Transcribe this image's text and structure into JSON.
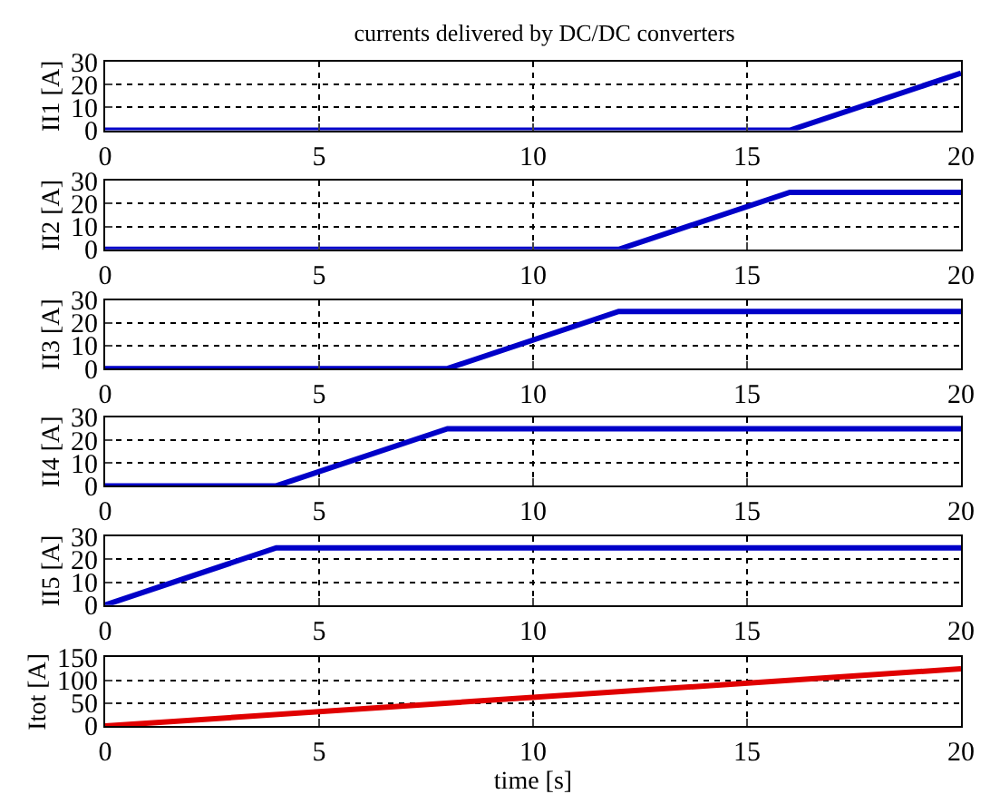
{
  "chart_data": [
    {
      "type": "line",
      "title": "currents delivered by DC/DC converters",
      "ylabel": "II1 [A]",
      "x": [
        0,
        16,
        20
      ],
      "series": [
        {
          "color": "#0000c8",
          "values": [
            0,
            0,
            25
          ]
        }
      ],
      "xlim": [
        0,
        20
      ],
      "xticks": [
        0,
        5,
        10,
        15,
        20
      ],
      "ylim": [
        0,
        30
      ],
      "yticks": [
        0,
        10,
        20,
        30
      ],
      "grid": true,
      "line_style": "solid"
    },
    {
      "type": "line",
      "ylabel": "II2 [A]",
      "x": [
        0,
        12,
        16,
        20
      ],
      "series": [
        {
          "color": "#0000c8",
          "values": [
            0,
            0,
            25,
            25
          ]
        }
      ],
      "xlim": [
        0,
        20
      ],
      "xticks": [
        0,
        5,
        10,
        15,
        20
      ],
      "ylim": [
        0,
        30
      ],
      "yticks": [
        0,
        10,
        20,
        30
      ],
      "grid": true,
      "line_style": "solid"
    },
    {
      "type": "line",
      "ylabel": "II3 [A]",
      "x": [
        0,
        8,
        12,
        20
      ],
      "series": [
        {
          "color": "#0000c8",
          "values": [
            0,
            0,
            25,
            25
          ]
        }
      ],
      "xlim": [
        0,
        20
      ],
      "xticks": [
        0,
        5,
        10,
        15,
        20
      ],
      "ylim": [
        0,
        30
      ],
      "yticks": [
        0,
        10,
        20,
        30
      ],
      "grid": true,
      "line_style": "solid"
    },
    {
      "type": "line",
      "ylabel": "II4 [A]",
      "x": [
        0,
        4,
        8,
        20
      ],
      "series": [
        {
          "color": "#0000c8",
          "values": [
            0,
            0,
            25,
            25
          ]
        }
      ],
      "xlim": [
        0,
        20
      ],
      "xticks": [
        0,
        5,
        10,
        15,
        20
      ],
      "ylim": [
        0,
        30
      ],
      "yticks": [
        0,
        10,
        20,
        30
      ],
      "grid": true,
      "line_style": "solid"
    },
    {
      "type": "line",
      "ylabel": "II5 [A]",
      "x": [
        0,
        4,
        20
      ],
      "series": [
        {
          "color": "#0000c8",
          "values": [
            0,
            25,
            25
          ]
        }
      ],
      "xlim": [
        0,
        20
      ],
      "xticks": [
        0,
        5,
        10,
        15,
        20
      ],
      "ylim": [
        0,
        30
      ],
      "yticks": [
        0,
        10,
        20,
        30
      ],
      "grid": true,
      "line_style": "solid"
    },
    {
      "type": "line",
      "ylabel": "Itot [A]",
      "xlabel": "time [s]",
      "x": [
        0,
        20
      ],
      "series": [
        {
          "color": "#e00000",
          "values": [
            0,
            125
          ]
        }
      ],
      "xlim": [
        0,
        20
      ],
      "xticks": [
        0,
        5,
        10,
        15,
        20
      ],
      "ylim": [
        0,
        150
      ],
      "yticks": [
        0,
        50,
        100,
        150
      ],
      "grid": true,
      "line_style": "solid"
    }
  ]
}
